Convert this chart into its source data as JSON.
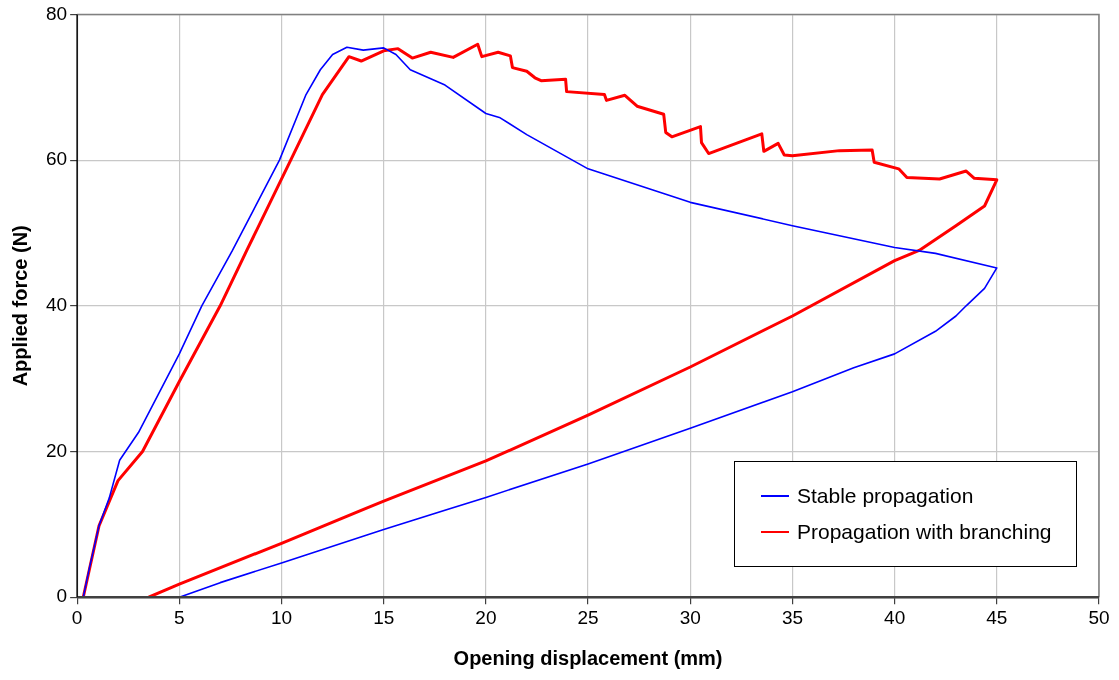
{
  "chart_data": {
    "type": "line",
    "xlabel": "Opening displacement (mm)",
    "ylabel": "Applied force (N)",
    "xlim": [
      0,
      50
    ],
    "xticks": [
      0,
      5,
      10,
      15,
      20,
      25,
      30,
      35,
      40,
      45,
      50
    ],
    "ylim": [
      0,
      80
    ],
    "yticks": [
      0,
      20,
      40,
      60,
      80
    ],
    "grid": true,
    "legend": "bottom right",
    "marker": "none",
    "line_style": "solid",
    "series": [
      {
        "name": "Stable propagation",
        "color": "#0000ff",
        "x": [
          0.3,
          0.6,
          1.07,
          1.57,
          2.08,
          3,
          5,
          6.1,
          7.6,
          9.9,
          11.2,
          11.9,
          12.5,
          13.2,
          14,
          15,
          15.6,
          16.3,
          18,
          20,
          20.7,
          22,
          25,
          30,
          35,
          40,
          42,
          45,
          44.4,
          43.5,
          43,
          42,
          40,
          38,
          35,
          30,
          25,
          20,
          15,
          10,
          7,
          5
        ],
        "values": [
          0,
          4,
          9.8,
          13.6,
          18.8,
          22.6,
          33.4,
          40,
          47.6,
          60,
          69,
          72.4,
          74.5,
          75.5,
          75.1,
          75.4,
          74.5,
          72.4,
          70.3,
          66.4,
          65.8,
          63.5,
          58.8,
          54.2,
          51,
          48,
          47.2,
          45.2,
          42.4,
          40,
          38.6,
          36.5,
          33.4,
          31.5,
          28.2,
          23.2,
          18.3,
          13.7,
          9.3,
          4.7,
          2,
          0
        ]
      },
      {
        "name": "Propagation with branching",
        "color": "#ff0000",
        "x": [
          0.3,
          1.07,
          2,
          3.2,
          5,
          7,
          8.3,
          10.45,
          12,
          13.3,
          13.9,
          15,
          15.7,
          16.4,
          17.3,
          18.4,
          19.6,
          19.8,
          20.6,
          21.2,
          21.3,
          22,
          22.4,
          22.7,
          23.9,
          23.95,
          25.8,
          25.9,
          26.8,
          27.4,
          28.7,
          28.8,
          29.1,
          30.5,
          30.55,
          30.9,
          33.5,
          33.6,
          34.3,
          34.6,
          35,
          37.3,
          38.9,
          39,
          40.2,
          40.6,
          42.2,
          43.5,
          43.9,
          45,
          44.4,
          43,
          41.2,
          40,
          35,
          30,
          25,
          20,
          15,
          10,
          5,
          3.5
        ],
        "values": [
          0,
          9.8,
          16,
          20,
          29.6,
          40,
          47.6,
          60,
          69,
          74.2,
          73.6,
          75,
          75.3,
          74,
          74.8,
          74.1,
          75.9,
          74.2,
          74.8,
          74.3,
          72.7,
          72.2,
          71.3,
          70.9,
          71.1,
          69.4,
          69,
          68.2,
          68.9,
          67.4,
          66.3,
          63.8,
          63.2,
          64.6,
          62.4,
          60.9,
          63.6,
          61.2,
          62.3,
          60.7,
          60.6,
          61.3,
          61.4,
          59.7,
          58.8,
          57.6,
          57.4,
          58.5,
          57.5,
          57.3,
          53.7,
          51,
          47.6,
          46.2,
          38.6,
          31.6,
          25,
          18.7,
          13.2,
          7.4,
          1.8,
          0
        ]
      }
    ]
  }
}
